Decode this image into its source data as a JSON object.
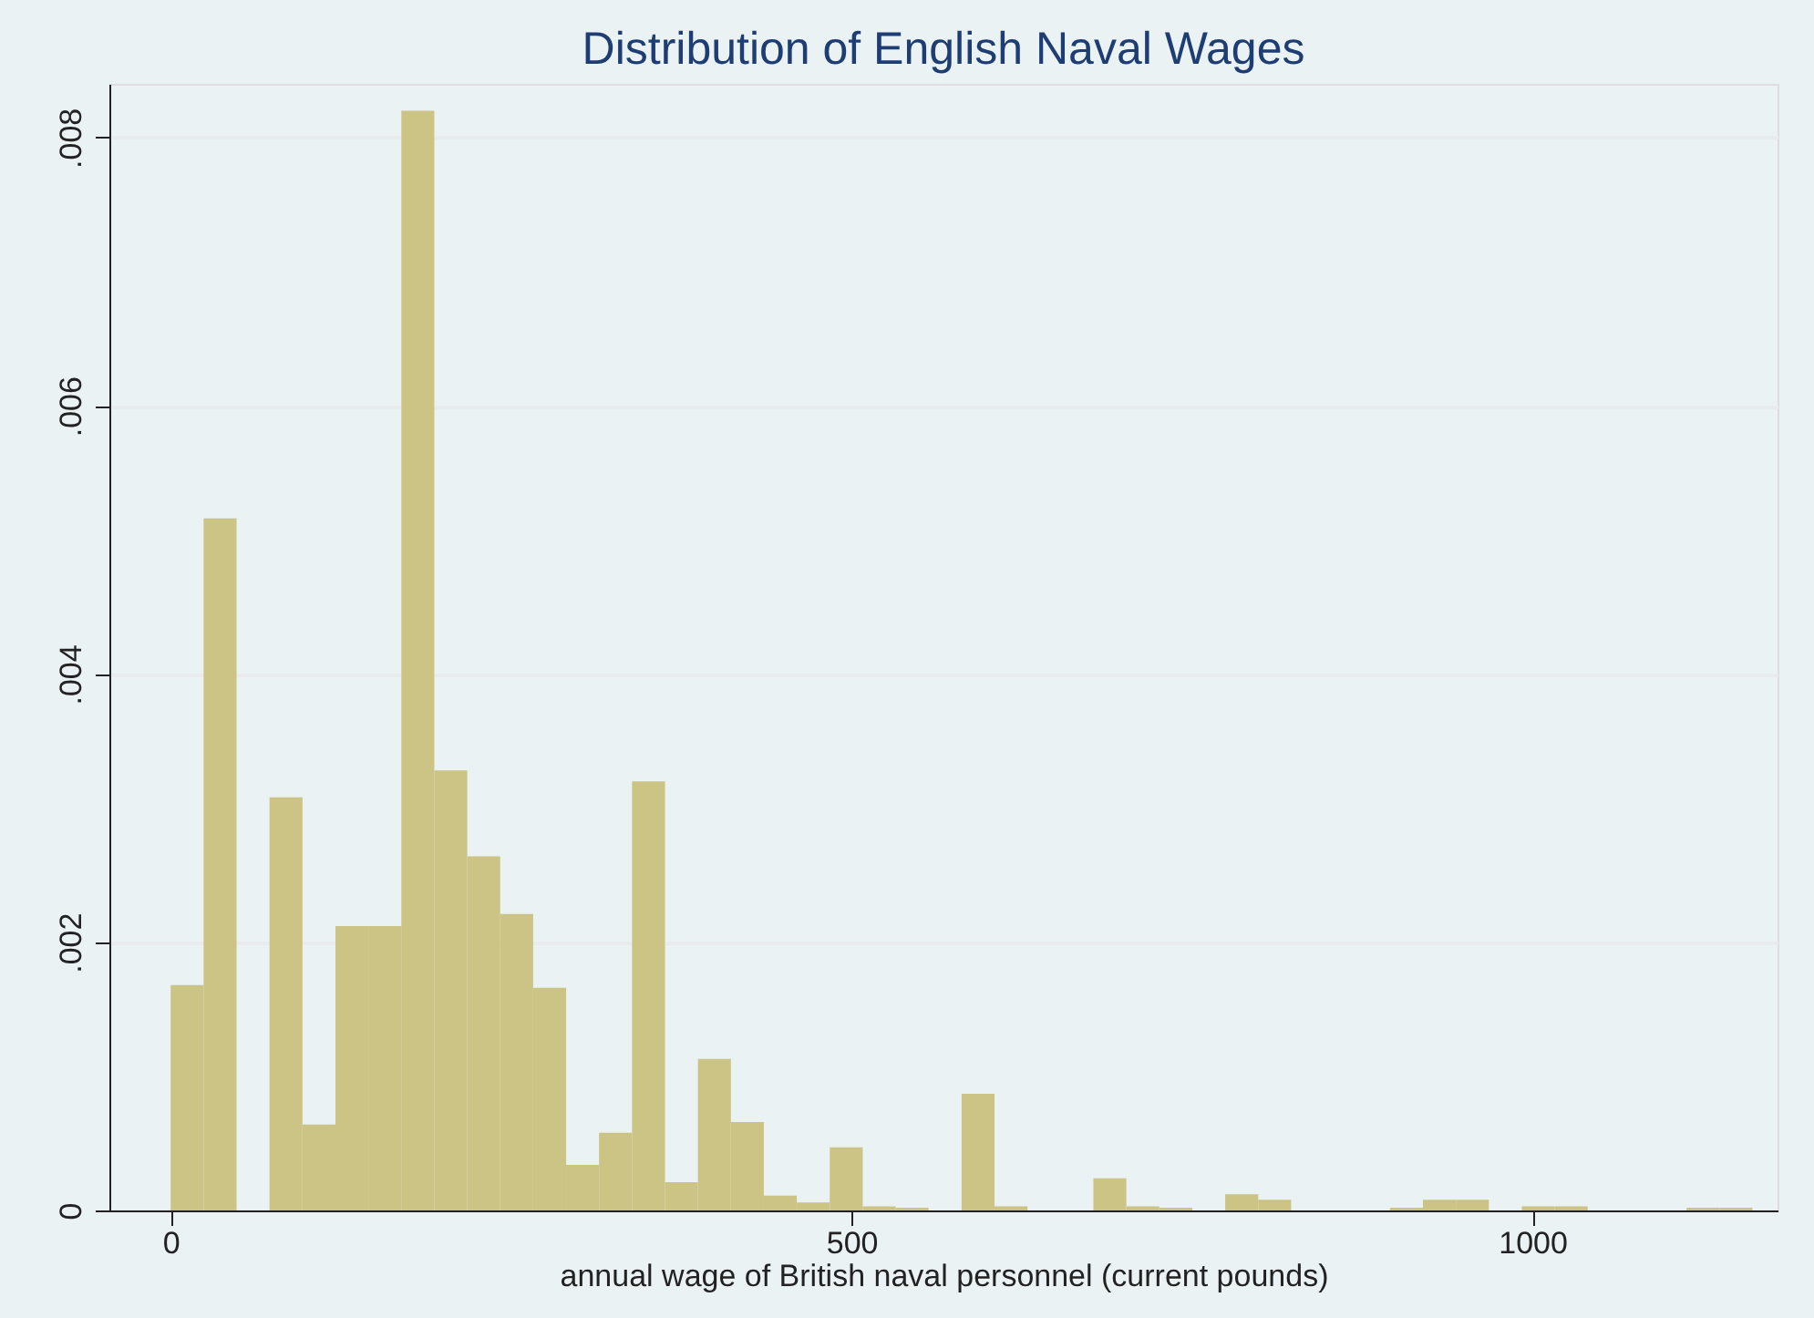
{
  "chart_data": {
    "type": "histogram",
    "title": "Distribution of English Naval Wages",
    "xlabel": "annual wage of British naval personnel (current pounds)",
    "bins": [
      0,
      24.2,
      48.4,
      72.6,
      96.8,
      121,
      145.2,
      169.4,
      193.6,
      217.8,
      242,
      266.2,
      290.4,
      314.6,
      338.8,
      363,
      387.2,
      411.4,
      435.6,
      459.8,
      484,
      508.2,
      532.4,
      556.6,
      580.8,
      605,
      629.2,
      653.4,
      677.6,
      701.8,
      726,
      750.2,
      774.4,
      798.6,
      822.8,
      847,
      871.2,
      895.4,
      919.6,
      943.8,
      968,
      992.2,
      1016.4,
      1040.6,
      1064.8,
      1089,
      1113.2,
      1137.4,
      1161.6
    ],
    "values": [
      0.00168,
      0.00516,
      0,
      0.00308,
      0.00064,
      0.00212,
      0.00212,
      0.0082,
      0.00328,
      0.00264,
      0.00221,
      0.00166,
      0.00034,
      0.00058,
      0.0032,
      0.00021,
      0.00113,
      0.00066,
      0.00011,
      6e-05,
      0.00047,
      3e-05,
      2e-05,
      0,
      0.00087,
      3e-05,
      0,
      0,
      0.00024,
      3e-05,
      2e-05,
      0,
      0.00012,
      8e-05,
      0,
      0,
      0,
      2e-05,
      8e-05,
      8e-05,
      0,
      3e-05,
      3e-05,
      0,
      0,
      0,
      2e-05,
      2e-05
    ],
    "color": "#cbc484",
    "xlim": [
      -45,
      1180
    ],
    "ylim": [
      0,
      0.0084
    ],
    "xticks": [
      0,
      500,
      1000
    ],
    "yticks": [
      0,
      {
        "value": 0.002,
        "label": ".002"
      },
      {
        "value": 0.004,
        "label": ".004"
      },
      {
        "value": 0.006,
        "label": ".006"
      },
      {
        "value": 0.008,
        "label": ".008"
      }
    ],
    "grid": "y"
  }
}
